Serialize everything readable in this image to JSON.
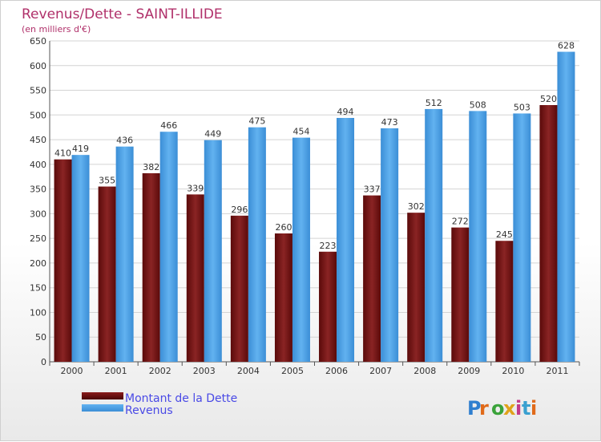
{
  "chart_data": {
    "type": "bar",
    "title": "Revenus/Dette - SAINT-ILLIDE",
    "subtitle": "(en milliers d'€)",
    "categories": [
      "2000",
      "2001",
      "2002",
      "2003",
      "2004",
      "2005",
      "2006",
      "2007",
      "2008",
      "2009",
      "2010",
      "2011"
    ],
    "series": [
      {
        "name": "Montant de la Dette",
        "values": [
          410,
          355,
          382,
          339,
          296,
          260,
          223,
          337,
          302,
          272,
          245,
          520
        ],
        "color": "#7a1a1a"
      },
      {
        "name": "Revenus",
        "values": [
          419,
          436,
          466,
          449,
          475,
          454,
          494,
          473,
          512,
          508,
          503,
          628
        ],
        "color": "#4aa0e6"
      }
    ],
    "ylim": [
      0,
      650
    ],
    "yticks": [
      0,
      50,
      100,
      150,
      200,
      250,
      300,
      350,
      400,
      450,
      500,
      550,
      600,
      650
    ],
    "grid": true,
    "legend_position": "bottom-left"
  },
  "colors": {
    "title": "#b0306a",
    "legend_text": "#4a4ae6",
    "axis_text": "#333333",
    "grid": "#d4d4d4"
  },
  "logo": {
    "text": "Proxiti"
  }
}
